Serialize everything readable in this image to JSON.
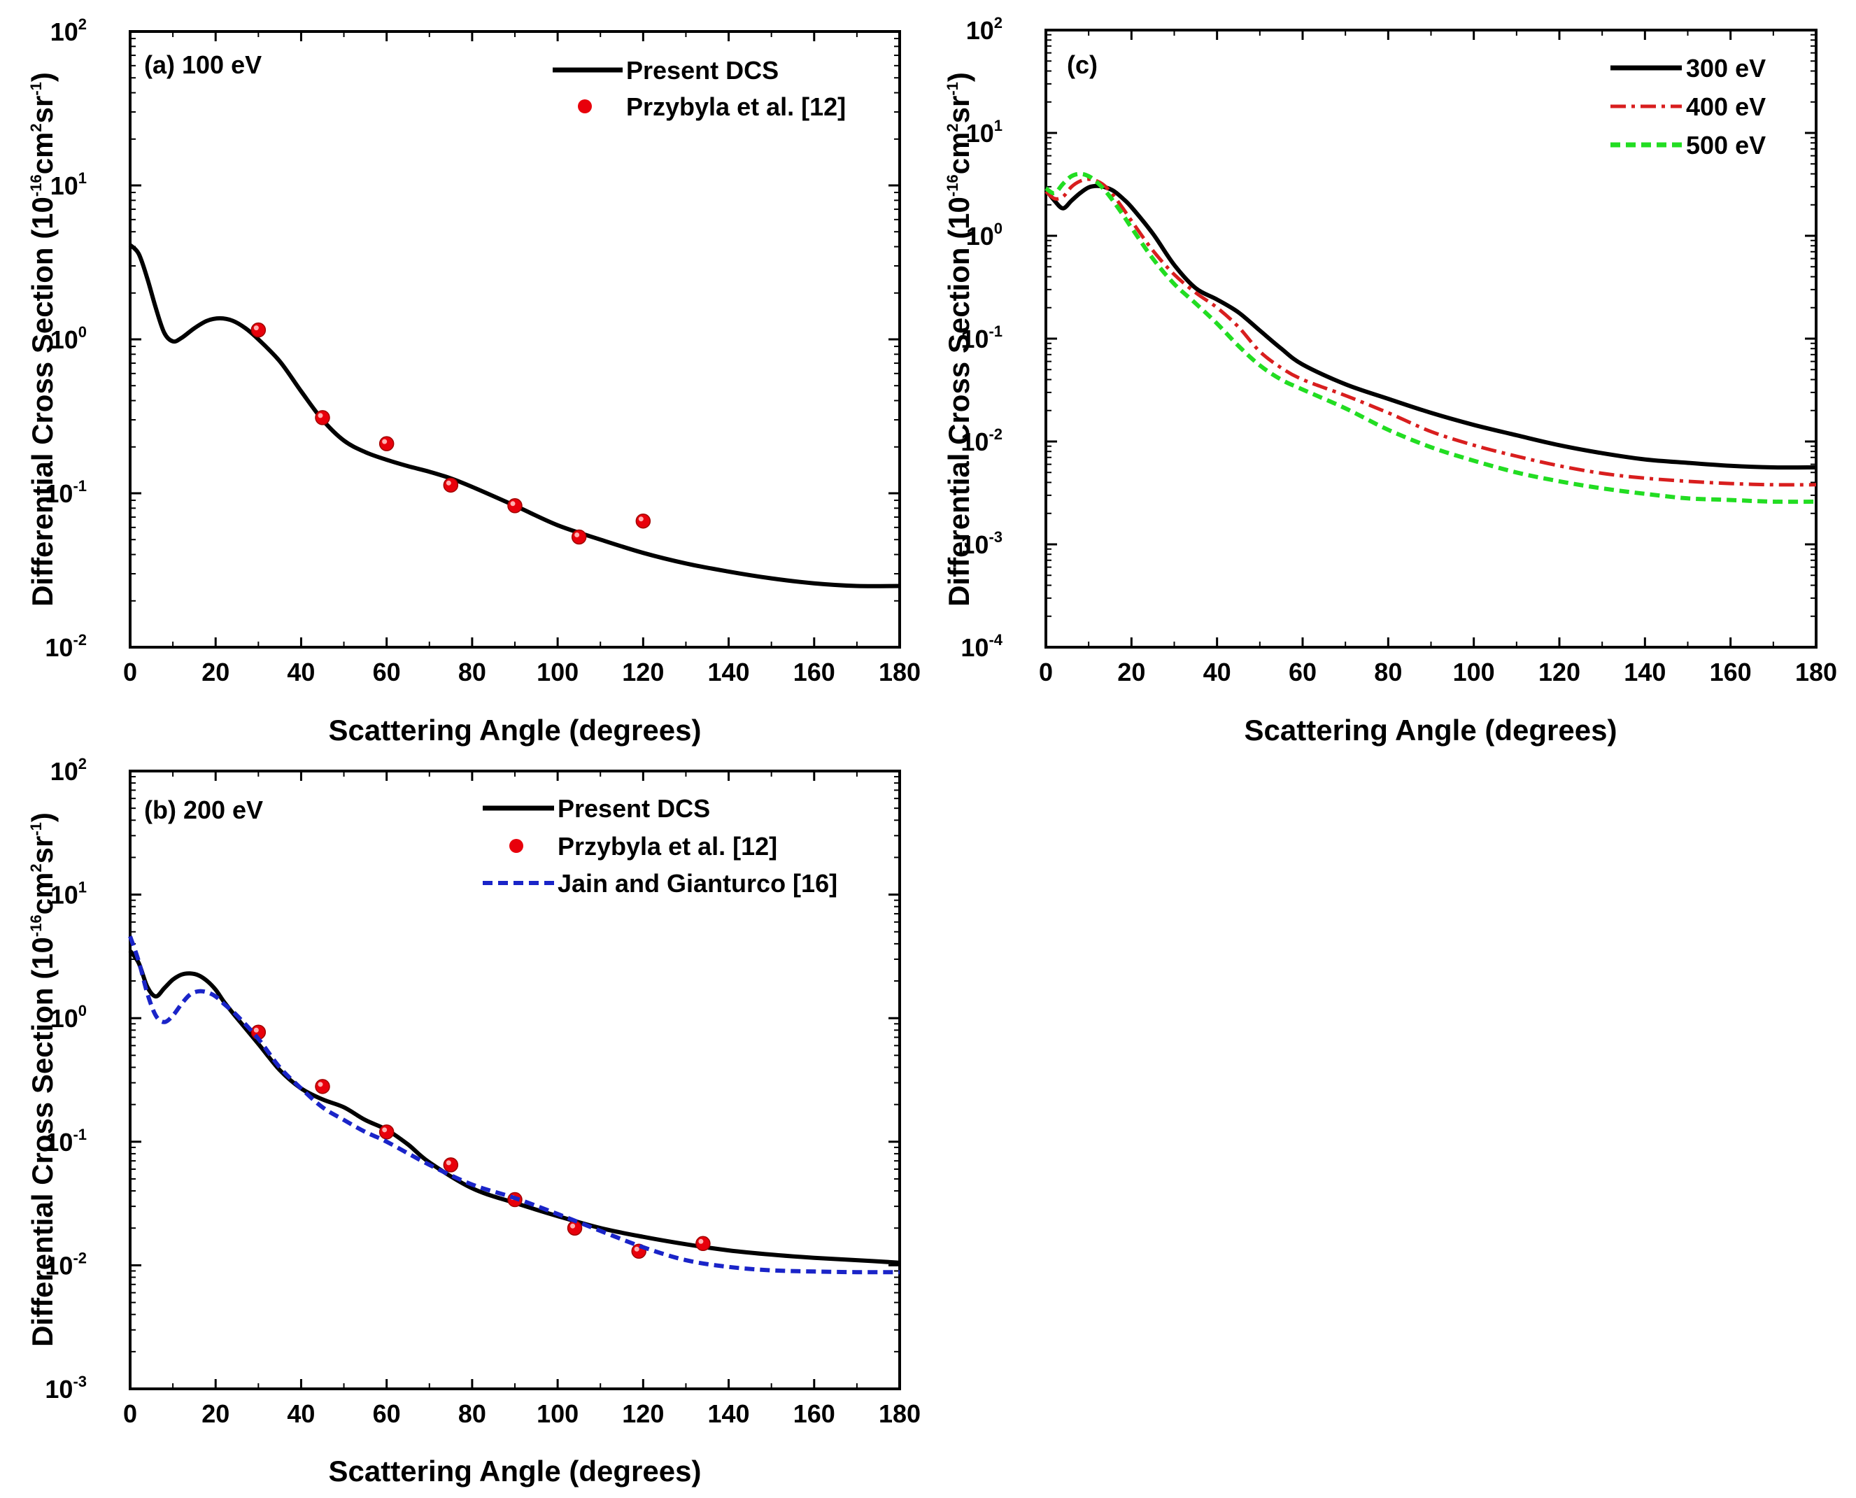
{
  "figure": {
    "colors": {
      "present": "#000000",
      "exp": "#e8000b",
      "jain": "#1a24c8",
      "e300": "#000000",
      "e400": "#d81e1e",
      "e500": "#22dd22"
    }
  },
  "chart_data": [
    {
      "id": "a",
      "type": "line",
      "panel_label": "(a) 100 eV",
      "xlabel": "Scattering Angle (degrees)",
      "ylabel": "Differential Cross Section (10",
      "ylabel_exp1": "-16",
      "ylabel_mid": "cm",
      "ylabel_exp2": "2",
      "ylabel_mid2": "sr",
      "ylabel_exp3": "-1",
      "ylabel_end": ")",
      "xlim": [
        0,
        180
      ],
      "ylim": [
        0.01,
        100
      ],
      "yscale": "log",
      "x_ticks": [
        0,
        20,
        40,
        60,
        80,
        100,
        120,
        140,
        160,
        180
      ],
      "y_ticks": [
        {
          "value": 0.01,
          "base": "10",
          "exp": "-2"
        },
        {
          "value": 0.1,
          "base": "10",
          "exp": "-1"
        },
        {
          "value": 1,
          "base": "10",
          "exp": "0"
        },
        {
          "value": 10,
          "base": "10",
          "exp": "1"
        },
        {
          "value": 100,
          "base": "10",
          "exp": "2"
        }
      ],
      "legend_position": "top-right",
      "series": [
        {
          "name": "Present DCS",
          "style": "solid",
          "color_key": "present",
          "x": [
            0,
            2,
            4,
            6,
            8,
            10,
            12,
            15,
            18,
            21,
            24,
            27,
            30,
            35,
            40,
            45,
            50,
            55,
            60,
            65,
            70,
            75,
            80,
            90,
            100,
            110,
            120,
            130,
            140,
            150,
            160,
            170,
            180
          ],
          "y": [
            4.1,
            3.6,
            2.5,
            1.6,
            1.1,
            0.97,
            1.02,
            1.18,
            1.32,
            1.37,
            1.32,
            1.18,
            1.0,
            0.72,
            0.46,
            0.3,
            0.22,
            0.185,
            0.165,
            0.15,
            0.138,
            0.125,
            0.11,
            0.083,
            0.062,
            0.05,
            0.041,
            0.035,
            0.031,
            0.028,
            0.026,
            0.025,
            0.025
          ]
        },
        {
          "name": "Przybyla et al. [12]",
          "style": "markers",
          "color_key": "exp",
          "x": [
            30,
            45,
            60,
            75,
            90,
            105,
            120
          ],
          "y": [
            1.15,
            0.31,
            0.21,
            0.113,
            0.083,
            0.052,
            0.066
          ]
        }
      ]
    },
    {
      "id": "b",
      "type": "line",
      "panel_label": "(b) 200 eV",
      "xlabel": "Scattering Angle (degrees)",
      "ylabel": "Differential Cross Section (10",
      "ylabel_exp1": "-16",
      "ylabel_mid": "cm",
      "ylabel_exp2": "2",
      "ylabel_mid2": "sr",
      "ylabel_exp3": "-1",
      "ylabel_end": ")",
      "xlim": [
        0,
        180
      ],
      "ylim": [
        0.001,
        100
      ],
      "yscale": "log",
      "x_ticks": [
        0,
        20,
        40,
        60,
        80,
        100,
        120,
        140,
        160,
        180
      ],
      "y_ticks": [
        {
          "value": 0.001,
          "base": "10",
          "exp": "-3"
        },
        {
          "value": 0.01,
          "base": "10",
          "exp": "-2"
        },
        {
          "value": 0.1,
          "base": "10",
          "exp": "-1"
        },
        {
          "value": 1,
          "base": "10",
          "exp": "0"
        },
        {
          "value": 10,
          "base": "10",
          "exp": "1"
        },
        {
          "value": 100,
          "base": "10",
          "exp": "2"
        }
      ],
      "legend_position": "top-right",
      "series": [
        {
          "name": "Present DCS",
          "style": "solid",
          "color_key": "present",
          "x": [
            0,
            2,
            4,
            6,
            8,
            10,
            12,
            14,
            16,
            18,
            20,
            22,
            25,
            30,
            35,
            40,
            45,
            50,
            55,
            60,
            65,
            70,
            80,
            90,
            100,
            110,
            120,
            130,
            140,
            150,
            160,
            170,
            180
          ],
          "y": [
            3.5,
            2.8,
            1.8,
            1.5,
            1.75,
            2.05,
            2.25,
            2.3,
            2.22,
            2.0,
            1.7,
            1.35,
            1.0,
            0.62,
            0.38,
            0.27,
            0.22,
            0.19,
            0.15,
            0.125,
            0.095,
            0.068,
            0.042,
            0.032,
            0.025,
            0.02,
            0.017,
            0.0148,
            0.0132,
            0.0122,
            0.0115,
            0.011,
            0.0105
          ]
        },
        {
          "name": "Przybyla et al. [12]",
          "style": "markers",
          "color_key": "exp",
          "x": [
            30,
            45,
            60,
            75,
            90,
            104,
            119,
            134
          ],
          "y": [
            0.77,
            0.28,
            0.12,
            0.065,
            0.034,
            0.02,
            0.013,
            0.015
          ]
        },
        {
          "name": "Jain and Gianturco [16]",
          "style": "dashed",
          "color_key": "jain",
          "x": [
            0,
            2,
            4,
            6,
            8,
            10,
            12,
            14,
            16,
            18,
            20,
            22,
            25,
            30,
            35,
            40,
            45,
            50,
            55,
            60,
            70,
            80,
            90,
            100,
            110,
            120,
            130,
            140,
            150,
            160,
            170,
            180
          ],
          "y": [
            4.6,
            2.9,
            1.6,
            1.05,
            0.93,
            1.05,
            1.3,
            1.55,
            1.65,
            1.62,
            1.5,
            1.3,
            1.05,
            0.68,
            0.4,
            0.27,
            0.19,
            0.15,
            0.12,
            0.1,
            0.065,
            0.045,
            0.035,
            0.026,
            0.019,
            0.014,
            0.011,
            0.0097,
            0.0091,
            0.0089,
            0.0088,
            0.0088
          ]
        }
      ]
    },
    {
      "id": "c",
      "type": "line",
      "panel_label": "(c)",
      "xlabel": "Scattering Angle (degrees)",
      "ylabel": "Differential Cross Section (10",
      "ylabel_exp1": "-16",
      "ylabel_mid": "cm",
      "ylabel_exp2": "2",
      "ylabel_mid2": "sr",
      "ylabel_exp3": "-1",
      "ylabel_end": ")",
      "xlim": [
        0,
        180
      ],
      "ylim": [
        0.0001,
        100
      ],
      "yscale": "log",
      "x_ticks": [
        0,
        20,
        40,
        60,
        80,
        100,
        120,
        140,
        160,
        180
      ],
      "y_ticks": [
        {
          "value": 0.0001,
          "base": "10",
          "exp": "-4"
        },
        {
          "value": 0.001,
          "base": "10",
          "exp": "-3"
        },
        {
          "value": 0.01,
          "base": "10",
          "exp": "-2"
        },
        {
          "value": 0.1,
          "base": "10",
          "exp": "-1"
        },
        {
          "value": 1,
          "base": "10",
          "exp": "0"
        },
        {
          "value": 10,
          "base": "10",
          "exp": "1"
        },
        {
          "value": 100,
          "base": "10",
          "exp": "2"
        }
      ],
      "legend_position": "top-right",
      "series": [
        {
          "name": "300 eV",
          "style": "solid",
          "color_key": "e300",
          "x": [
            0,
            2,
            4,
            6,
            8,
            10,
            12,
            14,
            16,
            18,
            20,
            25,
            30,
            35,
            40,
            45,
            50,
            55,
            60,
            70,
            80,
            90,
            100,
            110,
            120,
            130,
            140,
            150,
            160,
            170,
            180
          ],
          "y": [
            2.8,
            2.2,
            1.85,
            2.2,
            2.6,
            2.95,
            3.05,
            2.95,
            2.7,
            2.3,
            1.9,
            1.05,
            0.52,
            0.31,
            0.24,
            0.18,
            0.12,
            0.08,
            0.056,
            0.036,
            0.026,
            0.019,
            0.0145,
            0.0115,
            0.0092,
            0.0077,
            0.0067,
            0.0062,
            0.0058,
            0.0056,
            0.0056
          ]
        },
        {
          "name": "400 eV",
          "style": "dashdot",
          "color_key": "e400",
          "x": [
            0,
            2,
            4,
            6,
            8,
            10,
            12,
            14,
            16,
            18,
            20,
            25,
            30,
            35,
            40,
            45,
            50,
            55,
            60,
            70,
            80,
            90,
            100,
            110,
            120,
            130,
            140,
            150,
            160,
            170,
            180
          ],
          "y": [
            2.7,
            2.3,
            2.4,
            3.0,
            3.4,
            3.55,
            3.4,
            3.0,
            2.4,
            1.85,
            1.4,
            0.72,
            0.42,
            0.28,
            0.2,
            0.13,
            0.075,
            0.052,
            0.04,
            0.028,
            0.019,
            0.0125,
            0.0092,
            0.0072,
            0.0058,
            0.0049,
            0.0044,
            0.0041,
            0.0039,
            0.0038,
            0.0038
          ]
        },
        {
          "name": "500 eV",
          "style": "dashed",
          "color_key": "e500",
          "x": [
            0,
            2,
            4,
            6,
            8,
            10,
            12,
            14,
            16,
            18,
            20,
            25,
            30,
            35,
            40,
            45,
            50,
            55,
            60,
            70,
            80,
            90,
            100,
            110,
            120,
            130,
            140,
            150,
            160,
            170,
            180
          ],
          "y": [
            2.9,
            2.6,
            3.2,
            3.8,
            4.0,
            3.8,
            3.3,
            2.7,
            2.1,
            1.6,
            1.2,
            0.6,
            0.34,
            0.22,
            0.14,
            0.085,
            0.055,
            0.04,
            0.032,
            0.021,
            0.013,
            0.0088,
            0.0065,
            0.005,
            0.0041,
            0.0035,
            0.0031,
            0.0028,
            0.0027,
            0.0026,
            0.0026
          ]
        }
      ]
    }
  ]
}
